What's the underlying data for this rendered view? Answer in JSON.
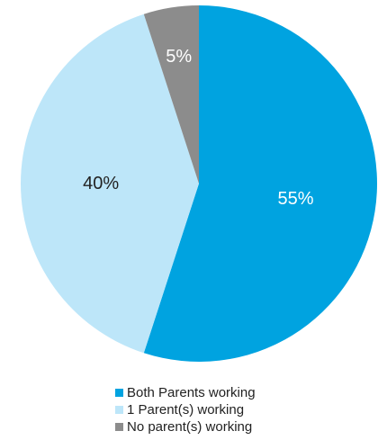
{
  "chart_data": {
    "type": "pie",
    "categories": [
      "Both Parents working",
      "1 Parent(s) working",
      "No parent(s) working"
    ],
    "values": [
      55,
      40,
      5
    ],
    "labels": [
      "55%",
      "40%",
      "5%"
    ],
    "colors": [
      "#00a3e0",
      "#bde6f9",
      "#8c8c8c"
    ],
    "label_colors": [
      "#ffffff",
      "#222222",
      "#ffffff"
    ],
    "start_angle_deg": 0,
    "direction": "clockwise",
    "legend_position": "bottom"
  }
}
